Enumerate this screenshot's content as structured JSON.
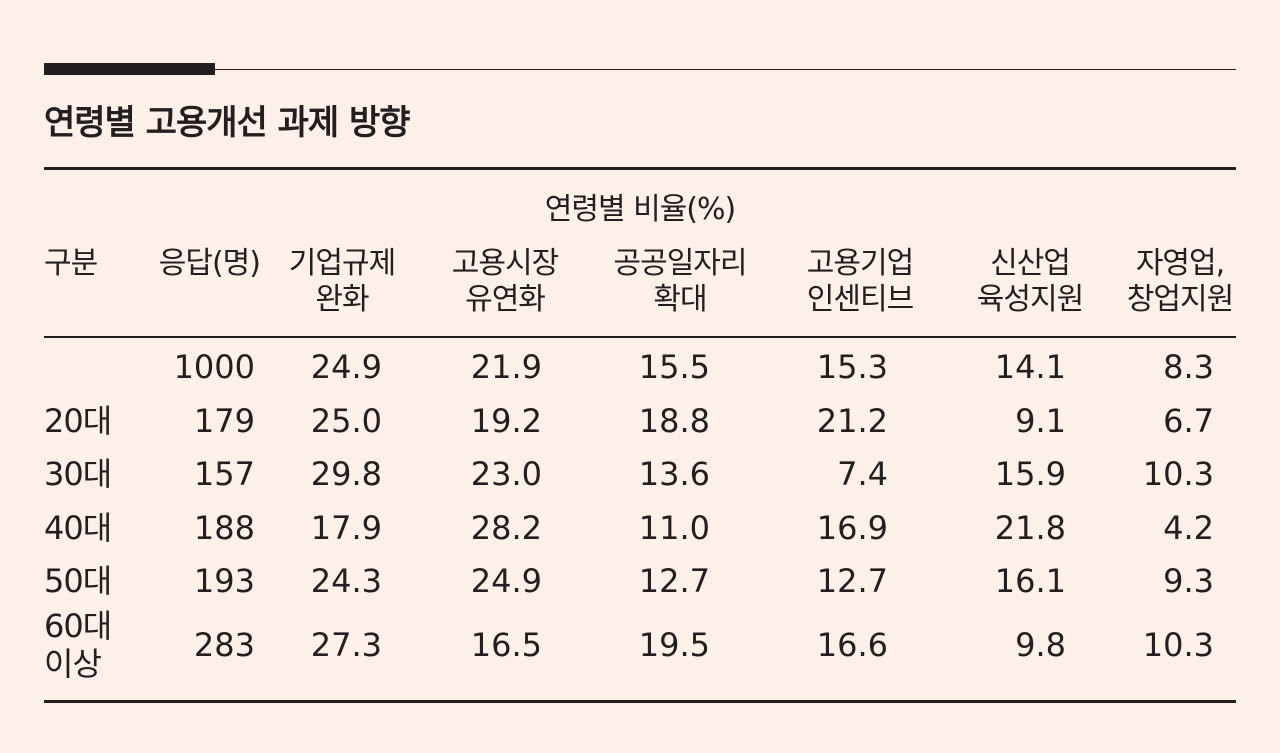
{
  "title": "연령별 고용개선 과제 방향",
  "chart_data": {
    "type": "table",
    "title": "연령별 고용개선 과제 방향",
    "subheader": "연령별 비율(%)",
    "columns": [
      "구분",
      "응답(명)",
      "기업규제\n완화",
      "고용시장\n유연화",
      "공공일자리\n확대",
      "고용기업\n인센티브",
      "신산업\n육성지원",
      "자영업,\n창업지원"
    ],
    "rows": [
      {
        "label": "",
        "values": [
          "1000",
          "24.9",
          "21.9",
          "15.5",
          "15.3",
          "14.1",
          "8.3"
        ]
      },
      {
        "label": "20대",
        "values": [
          "179",
          "25.0",
          "19.2",
          "18.8",
          "21.2",
          "9.1",
          "6.7"
        ]
      },
      {
        "label": "30대",
        "values": [
          "157",
          "29.8",
          "23.0",
          "13.6",
          "7.4",
          "15.9",
          "10.3"
        ]
      },
      {
        "label": "40대",
        "values": [
          "188",
          "17.9",
          "28.2",
          "11.0",
          "16.9",
          "21.8",
          "4.2"
        ]
      },
      {
        "label": "50대",
        "values": [
          "193",
          "24.3",
          "24.9",
          "12.7",
          "12.7",
          "16.1",
          "9.3"
        ]
      },
      {
        "label": "60대\n이상",
        "values": [
          "283",
          "27.3",
          "16.5",
          "19.5",
          "16.6",
          "9.8",
          "10.3"
        ]
      }
    ]
  },
  "colors": {
    "background": "#fcf0e9",
    "text": "#231f20"
  }
}
